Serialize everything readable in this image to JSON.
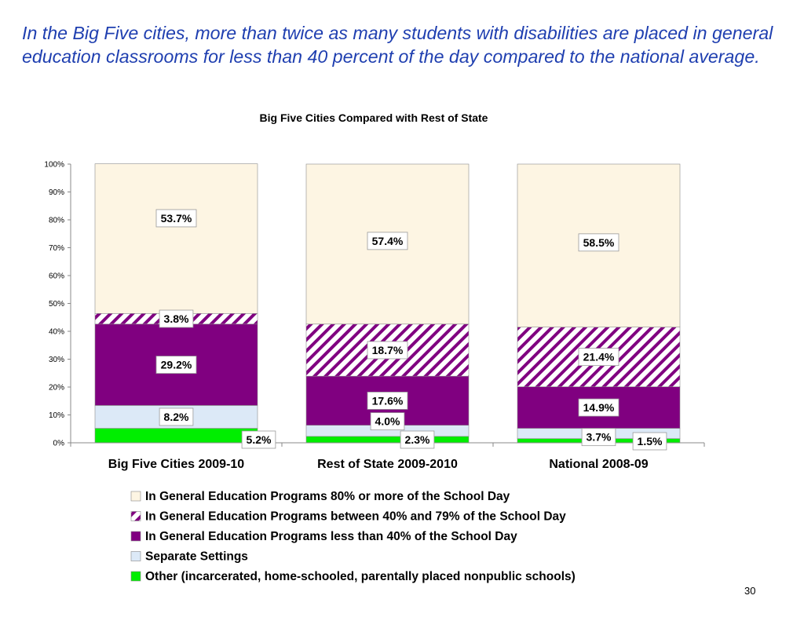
{
  "slide": {
    "title": "In the Big Five cities, more than twice as many students with disabilities are placed in general education classrooms for less than 40 percent of the day compared to the national average.",
    "page_number": "30"
  },
  "chart_data": {
    "type": "bar",
    "stacked": true,
    "percent_stacked": true,
    "title": "Big Five Cities Compared with Rest of State",
    "xlabel": "",
    "ylabel": "",
    "ylim": [
      0,
      100
    ],
    "y_tick_values": [
      0,
      10,
      20,
      30,
      40,
      50,
      60,
      70,
      80,
      90,
      100
    ],
    "y_tick_labels": [
      "0%",
      "10%",
      "20%",
      "30%",
      "40%",
      "50%",
      "60%",
      "70%",
      "80%",
      "90%",
      "100%"
    ],
    "grid": false,
    "legend_position": "bottom",
    "categories": [
      "Big Five Cities 2009-10",
      "Rest of State 2009-2010",
      "National 2008-09"
    ],
    "series": [
      {
        "name": "Other (incarcerated, home-schooled, parentally placed nonpublic schools)",
        "values": [
          5.2,
          2.3,
          1.5
        ],
        "labels": [
          "5.2%",
          "2.3%",
          "1.5%"
        ],
        "color": "#00ee00",
        "pattern": "solid"
      },
      {
        "name": "Separate Settings",
        "values": [
          8.2,
          4.0,
          3.7
        ],
        "labels": [
          "8.2%",
          "4.0%",
          "3.7%"
        ],
        "color": "#dce9f7",
        "pattern": "solid"
      },
      {
        "name": "In General Education Programs less than 40% of the School Day",
        "values": [
          29.2,
          17.6,
          14.9
        ],
        "labels": [
          "29.2%",
          "17.6%",
          "14.9%"
        ],
        "color": "#800080",
        "pattern": "solid"
      },
      {
        "name": "In General Education Programs between 40% and 79% of the School Day",
        "values": [
          3.8,
          18.7,
          21.4
        ],
        "labels": [
          "3.8%",
          "18.7%",
          "21.4%"
        ],
        "color": "#800080",
        "pattern": "diagonal-hatch"
      },
      {
        "name": "In General Education Programs 80% or more of the School Day",
        "values": [
          53.7,
          57.4,
          58.5
        ],
        "labels": [
          "53.7%",
          "57.4%",
          "58.5%"
        ],
        "color": "#fdf5e3",
        "pattern": "solid"
      }
    ]
  }
}
